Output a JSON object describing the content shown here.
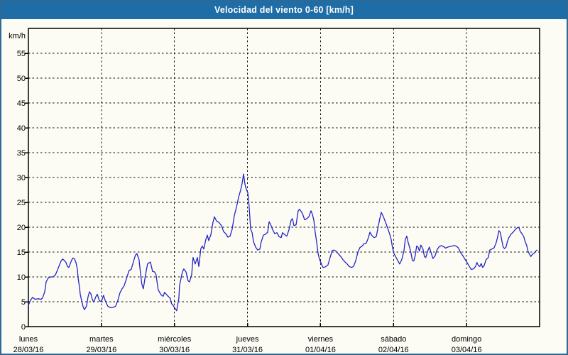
{
  "window": {
    "title": "Velocidad del viento 0-60 [km/h]"
  },
  "colors": {
    "titlebar": "#1e6da6",
    "window_border": "#2e6897",
    "background": "#fcfcf4",
    "grid": "#111111",
    "axis": "#000000",
    "text": "#000000",
    "line": "#2424c8"
  },
  "chart_data": {
    "type": "line",
    "title": "Velocidad del viento 0-60 [km/h]",
    "ylabel": "km/h",
    "xlabel": "",
    "ylim": [
      0,
      60
    ],
    "yticks": [
      0,
      5,
      10,
      15,
      20,
      25,
      30,
      35,
      40,
      45,
      50,
      55
    ],
    "grid": "dashed",
    "legend_position": "none",
    "x_days": [
      {
        "name": "lunes",
        "date": "28/03/16"
      },
      {
        "name": "martes",
        "date": "29/03/16"
      },
      {
        "name": "miércoles",
        "date": "30/03/16"
      },
      {
        "name": "jueves",
        "date": "31/03/16"
      },
      {
        "name": "viernes",
        "date": "01/04/16"
      },
      {
        "name": "sábado",
        "date": "02/04/16"
      },
      {
        "name": "domingo",
        "date": "03/04/16"
      }
    ],
    "series": [
      {
        "name": "Velocidad del viento",
        "units": "km/h",
        "color": "#2424c8",
        "x_units": "days_from_start",
        "points": [
          [
            0.0,
            4.3
          ],
          [
            0.029,
            5.3
          ],
          [
            0.058,
            5.9
          ],
          [
            0.088,
            5.5
          ],
          [
            0.136,
            5.6
          ],
          [
            0.175,
            5.5
          ],
          [
            0.194,
            5.8
          ],
          [
            0.224,
            7.0
          ],
          [
            0.243,
            9.0
          ],
          [
            0.272,
            9.8
          ],
          [
            0.311,
            10.0
          ],
          [
            0.34,
            10.0
          ],
          [
            0.369,
            10.4
          ],
          [
            0.399,
            11.4
          ],
          [
            0.428,
            12.5
          ],
          [
            0.447,
            13.2
          ],
          [
            0.467,
            13.6
          ],
          [
            0.486,
            13.4
          ],
          [
            0.515,
            12.9
          ],
          [
            0.535,
            12.1
          ],
          [
            0.554,
            11.9
          ],
          [
            0.574,
            12.7
          ],
          [
            0.593,
            13.4
          ],
          [
            0.612,
            13.8
          ],
          [
            0.632,
            13.6
          ],
          [
            0.651,
            12.9
          ],
          [
            0.671,
            11.5
          ],
          [
            0.681,
            9.8
          ],
          [
            0.7,
            7.9
          ],
          [
            0.71,
            6.5
          ],
          [
            0.729,
            5.2
          ],
          [
            0.749,
            4.0
          ],
          [
            0.768,
            3.4
          ],
          [
            0.797,
            4.2
          ],
          [
            0.817,
            6.0
          ],
          [
            0.836,
            7.0
          ],
          [
            0.856,
            6.6
          ],
          [
            0.875,
            5.5
          ],
          [
            0.894,
            4.9
          ],
          [
            0.924,
            6.0
          ],
          [
            0.943,
            6.5
          ],
          [
            0.972,
            5.2
          ],
          [
            1.0,
            5.0
          ],
          [
            1.029,
            6.3
          ],
          [
            1.058,
            5.0
          ],
          [
            1.088,
            4.1
          ],
          [
            1.126,
            3.8
          ],
          [
            1.165,
            3.9
          ],
          [
            1.194,
            4.1
          ],
          [
            1.223,
            5.2
          ],
          [
            1.253,
            6.8
          ],
          [
            1.282,
            7.6
          ],
          [
            1.311,
            8.2
          ],
          [
            1.34,
            9.5
          ],
          [
            1.379,
            11.3
          ],
          [
            1.408,
            11.5
          ],
          [
            1.437,
            13.0
          ],
          [
            1.466,
            14.4
          ],
          [
            1.486,
            14.7
          ],
          [
            1.515,
            13.5
          ],
          [
            1.535,
            10.7
          ],
          [
            1.553,
            8.6
          ],
          [
            1.574,
            7.6
          ],
          [
            1.602,
            10.3
          ],
          [
            1.631,
            12.6
          ],
          [
            1.67,
            13.0
          ],
          [
            1.7,
            11.1
          ],
          [
            1.729,
            11.0
          ],
          [
            1.748,
            10.4
          ],
          [
            1.777,
            7.4
          ],
          [
            1.816,
            6.4
          ],
          [
            1.845,
            6.1
          ],
          [
            1.865,
            6.9
          ],
          [
            1.894,
            6.4
          ],
          [
            1.913,
            6.1
          ],
          [
            1.942,
            5.7
          ],
          [
            1.961,
            4.6
          ],
          [
            1.98,
            4.3
          ],
          [
            2.01,
            3.6
          ],
          [
            2.03,
            3.2
          ],
          [
            2.06,
            5.7
          ],
          [
            2.07,
            8.3
          ],
          [
            2.109,
            11.0
          ],
          [
            2.128,
            11.6
          ],
          [
            2.158,
            11.0
          ],
          [
            2.187,
            9.2
          ],
          [
            2.207,
            9.0
          ],
          [
            2.236,
            10.5
          ],
          [
            2.255,
            13.9
          ],
          [
            2.284,
            12.6
          ],
          [
            2.314,
            13.9
          ],
          [
            2.333,
            12.1
          ],
          [
            2.362,
            15.7
          ],
          [
            2.382,
            16.2
          ],
          [
            2.401,
            15.6
          ],
          [
            2.43,
            17.5
          ],
          [
            2.45,
            18.4
          ],
          [
            2.469,
            17.3
          ],
          [
            2.499,
            18.5
          ],
          [
            2.528,
            21.0
          ],
          [
            2.547,
            22.1
          ],
          [
            2.577,
            21.2
          ],
          [
            2.606,
            21.0
          ],
          [
            2.645,
            20.3
          ],
          [
            2.674,
            19.1
          ],
          [
            2.703,
            18.7
          ],
          [
            2.732,
            18.0
          ],
          [
            2.761,
            18.2
          ],
          [
            2.79,
            19.6
          ],
          [
            2.819,
            22.3
          ],
          [
            2.849,
            24.0
          ],
          [
            2.878,
            26.0
          ],
          [
            2.907,
            27.5
          ],
          [
            2.926,
            28.8
          ],
          [
            2.946,
            30.7
          ],
          [
            2.966,
            28.6
          ],
          [
            2.985,
            27.6
          ],
          [
            3.005,
            26.9
          ],
          [
            3.024,
            24.0
          ],
          [
            3.043,
            19.6
          ],
          [
            3.063,
            18.9
          ],
          [
            3.082,
            17.1
          ],
          [
            3.111,
            16.0
          ],
          [
            3.14,
            15.4
          ],
          [
            3.169,
            15.6
          ],
          [
            3.189,
            17.1
          ],
          [
            3.218,
            18.4
          ],
          [
            3.247,
            18.6
          ],
          [
            3.276,
            19.0
          ],
          [
            3.296,
            21.1
          ],
          [
            3.315,
            20.6
          ],
          [
            3.344,
            19.5
          ],
          [
            3.373,
            18.7
          ],
          [
            3.403,
            18.9
          ],
          [
            3.432,
            18.1
          ],
          [
            3.461,
            17.9
          ],
          [
            3.48,
            18.9
          ],
          [
            3.51,
            18.5
          ],
          [
            3.539,
            18.2
          ],
          [
            3.568,
            19.5
          ],
          [
            3.597,
            21.4
          ],
          [
            3.617,
            21.7
          ],
          [
            3.636,
            20.3
          ],
          [
            3.665,
            20.5
          ],
          [
            3.694,
            23.3
          ],
          [
            3.714,
            23.6
          ],
          [
            3.743,
            23.0
          ],
          [
            3.762,
            22.4
          ],
          [
            3.782,
            21.5
          ],
          [
            3.811,
            21.7
          ],
          [
            3.84,
            22.1
          ],
          [
            3.869,
            23.3
          ],
          [
            3.889,
            22.6
          ],
          [
            3.908,
            21.4
          ],
          [
            3.927,
            19.0
          ],
          [
            3.947,
            17.0
          ],
          [
            3.966,
            14.8
          ],
          [
            3.985,
            13.6
          ],
          [
            4.005,
            12.9
          ],
          [
            4.034,
            11.9
          ],
          [
            4.063,
            12.0
          ],
          [
            4.102,
            12.4
          ],
          [
            4.131,
            13.9
          ],
          [
            4.16,
            15.3
          ],
          [
            4.18,
            15.4
          ],
          [
            4.209,
            15.2
          ],
          [
            4.248,
            14.6
          ],
          [
            4.277,
            14.1
          ],
          [
            4.306,
            13.5
          ],
          [
            4.335,
            13.0
          ],
          [
            4.364,
            12.6
          ],
          [
            4.393,
            12.1
          ],
          [
            4.423,
            11.9
          ],
          [
            4.452,
            12.1
          ],
          [
            4.481,
            13.2
          ],
          [
            4.51,
            14.9
          ],
          [
            4.539,
            15.9
          ],
          [
            4.569,
            16.2
          ],
          [
            4.598,
            16.7
          ],
          [
            4.627,
            16.8
          ],
          [
            4.656,
            17.9
          ],
          [
            4.676,
            19.0
          ],
          [
            4.705,
            18.3
          ],
          [
            4.734,
            17.9
          ],
          [
            4.764,
            18.1
          ],
          [
            4.793,
            20.4
          ],
          [
            4.812,
            21.7
          ],
          [
            4.832,
            23.0
          ],
          [
            4.861,
            22.1
          ],
          [
            4.89,
            21.0
          ],
          [
            4.919,
            19.8
          ],
          [
            4.948,
            18.6
          ],
          [
            4.968,
            17.5
          ],
          [
            4.987,
            15.8
          ],
          [
            5.006,
            14.7
          ],
          [
            5.035,
            13.9
          ],
          [
            5.064,
            13.1
          ],
          [
            5.084,
            12.6
          ],
          [
            5.113,
            13.5
          ],
          [
            5.142,
            15.2
          ],
          [
            5.161,
            17.5
          ],
          [
            5.181,
            18.2
          ],
          [
            5.2,
            16.9
          ],
          [
            5.219,
            16.0
          ],
          [
            5.239,
            14.8
          ],
          [
            5.258,
            13.3
          ],
          [
            5.277,
            13.2
          ],
          [
            5.297,
            14.3
          ],
          [
            5.316,
            16.2
          ],
          [
            5.335,
            16.0
          ],
          [
            5.355,
            15.2
          ],
          [
            5.374,
            16.4
          ],
          [
            5.403,
            15.6
          ],
          [
            5.423,
            14.1
          ],
          [
            5.442,
            13.9
          ],
          [
            5.471,
            15.3
          ],
          [
            5.49,
            16.0
          ],
          [
            5.52,
            14.6
          ],
          [
            5.539,
            13.7
          ],
          [
            5.568,
            14.2
          ],
          [
            5.597,
            15.5
          ],
          [
            5.626,
            16.1
          ],
          [
            5.655,
            16.3
          ],
          [
            5.684,
            16.1
          ],
          [
            5.714,
            15.8
          ],
          [
            5.743,
            16.0
          ],
          [
            5.772,
            16.1
          ],
          [
            5.801,
            16.2
          ],
          [
            5.83,
            16.3
          ],
          [
            5.86,
            16.2
          ],
          [
            5.889,
            15.8
          ],
          [
            5.918,
            14.9
          ],
          [
            5.947,
            14.3
          ],
          [
            5.976,
            13.6
          ],
          [
            6.006,
            12.9
          ],
          [
            6.035,
            12.2
          ],
          [
            6.064,
            11.5
          ],
          [
            6.093,
            11.6
          ],
          [
            6.122,
            12.1
          ],
          [
            6.142,
            12.9
          ],
          [
            6.161,
            12.3
          ],
          [
            6.181,
            12.1
          ],
          [
            6.2,
            12.7
          ],
          [
            6.219,
            11.9
          ],
          [
            6.239,
            12.2
          ],
          [
            6.268,
            13.5
          ],
          [
            6.297,
            13.9
          ],
          [
            6.317,
            15.4
          ],
          [
            6.346,
            15.6
          ],
          [
            6.375,
            15.8
          ],
          [
            6.404,
            16.8
          ],
          [
            6.424,
            18.0
          ],
          [
            6.443,
            19.3
          ],
          [
            6.462,
            18.9
          ],
          [
            6.482,
            17.4
          ],
          [
            6.501,
            16.0
          ],
          [
            6.52,
            15.7
          ],
          [
            6.54,
            16.0
          ],
          [
            6.559,
            17.1
          ],
          [
            6.579,
            17.9
          ],
          [
            6.608,
            18.6
          ],
          [
            6.637,
            19.0
          ],
          [
            6.666,
            19.5
          ],
          [
            6.695,
            19.9
          ],
          [
            6.715,
            20.0
          ],
          [
            6.734,
            19.2
          ],
          [
            6.763,
            18.6
          ],
          [
            6.783,
            18.1
          ],
          [
            6.802,
            17.1
          ],
          [
            6.822,
            16.4
          ],
          [
            6.841,
            15.2
          ],
          [
            6.86,
            14.6
          ],
          [
            6.88,
            14.1
          ],
          [
            6.899,
            14.5
          ],
          [
            6.928,
            14.8
          ],
          [
            6.948,
            15.2
          ],
          [
            6.967,
            15.4
          ]
        ]
      }
    ]
  }
}
